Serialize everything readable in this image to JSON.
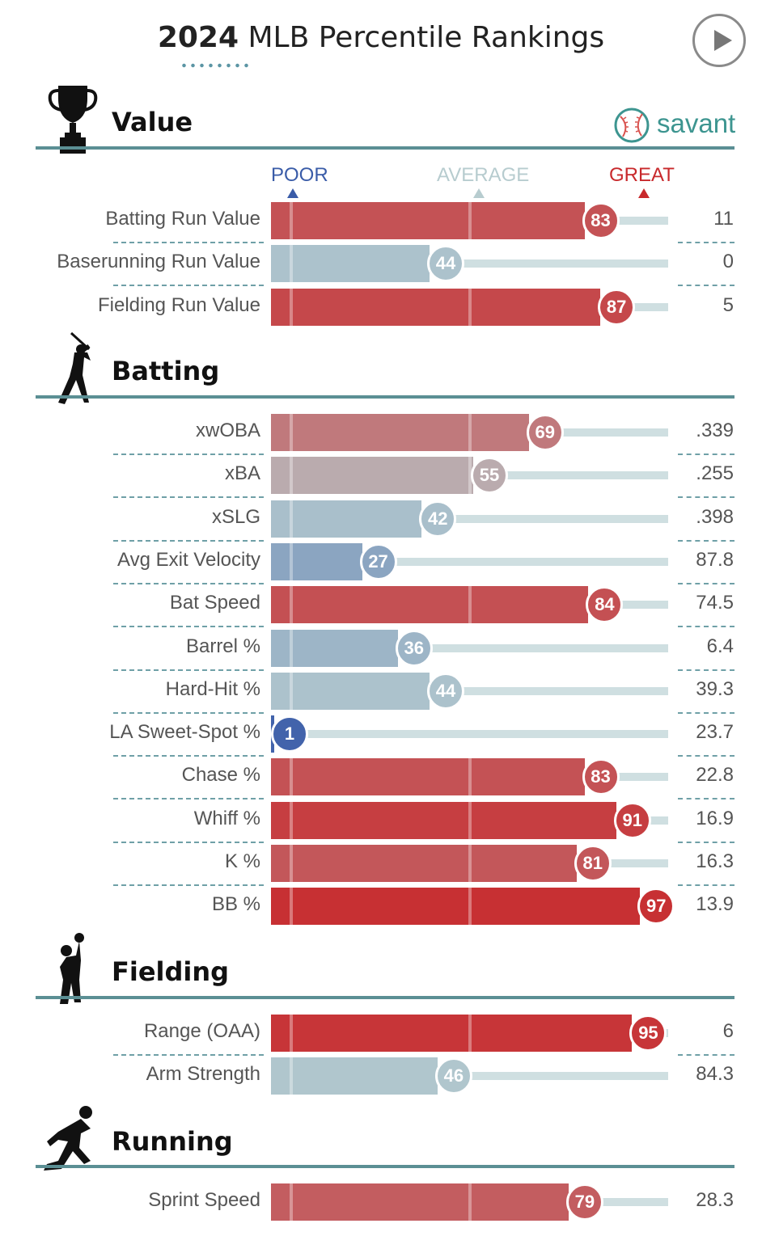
{
  "header": {
    "year": "2024",
    "title_rest": "MLB Percentile Rankings",
    "brand": "savant"
  },
  "scale": {
    "poor": "POOR",
    "average": "AVERAGE",
    "great": "GREAT"
  },
  "colors": {
    "poor": "#3a5ca8",
    "average": "#b7cccf",
    "great": "#c8292c",
    "section_line": "#5b8f94"
  },
  "chart_data": {
    "type": "bar",
    "xlim": [
      0,
      100
    ],
    "sections": [
      {
        "name": "Value",
        "icon": "trophy-icon",
        "rows": [
          {
            "metric": "Batting Run Value",
            "percentile": 83,
            "value": "11"
          },
          {
            "metric": "Baserunning Run Value",
            "percentile": 44,
            "value": "0"
          },
          {
            "metric": "Fielding Run Value",
            "percentile": 87,
            "value": "5"
          }
        ]
      },
      {
        "name": "Batting",
        "icon": "batter-icon",
        "rows": [
          {
            "metric": "xwOBA",
            "percentile": 69,
            "value": ".339"
          },
          {
            "metric": "xBA",
            "percentile": 55,
            "value": ".255"
          },
          {
            "metric": "xSLG",
            "percentile": 42,
            "value": ".398"
          },
          {
            "metric": "Avg Exit Velocity",
            "percentile": 27,
            "value": "87.8"
          },
          {
            "metric": "Bat Speed",
            "percentile": 84,
            "value": "74.5"
          },
          {
            "metric": "Barrel %",
            "percentile": 36,
            "value": "6.4"
          },
          {
            "metric": "Hard-Hit %",
            "percentile": 44,
            "value": "39.3"
          },
          {
            "metric": "LA Sweet-Spot %",
            "percentile": 1,
            "value": "23.7"
          },
          {
            "metric": "Chase %",
            "percentile": 83,
            "value": "22.8"
          },
          {
            "metric": "Whiff %",
            "percentile": 91,
            "value": "16.9"
          },
          {
            "metric": "K %",
            "percentile": 81,
            "value": "16.3"
          },
          {
            "metric": "BB %",
            "percentile": 97,
            "value": "13.9"
          }
        ]
      },
      {
        "name": "Fielding",
        "icon": "fielder-icon",
        "rows": [
          {
            "metric": "Range (OAA)",
            "percentile": 95,
            "value": "6"
          },
          {
            "metric": "Arm Strength",
            "percentile": 46,
            "value": "84.3"
          }
        ]
      },
      {
        "name": "Running",
        "icon": "runner-icon",
        "rows": [
          {
            "metric": "Sprint Speed",
            "percentile": 79,
            "value": "28.3"
          }
        ]
      }
    ]
  }
}
